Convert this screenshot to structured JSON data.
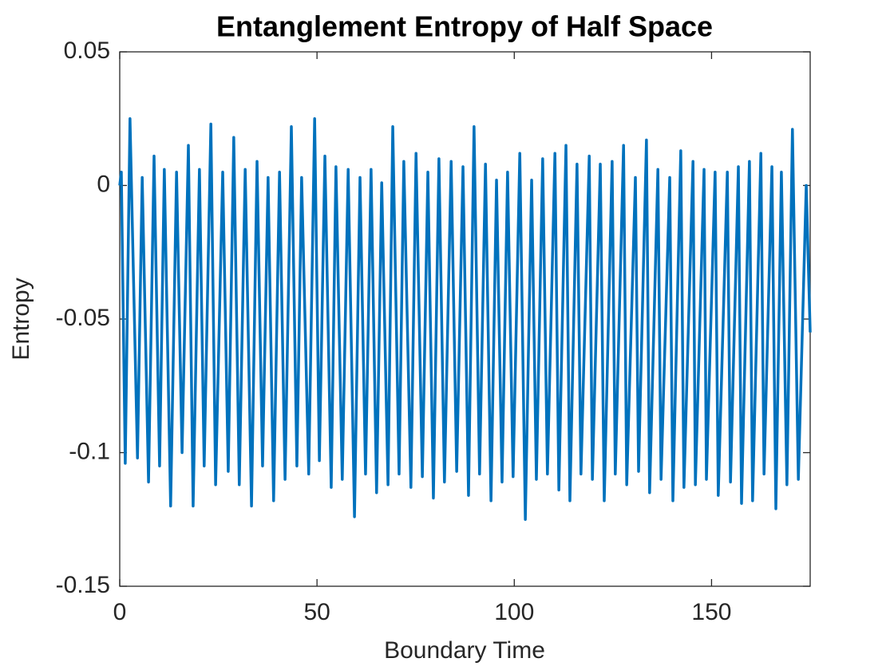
{
  "chart_data": {
    "type": "line",
    "title": "Entanglement Entropy of Half Space",
    "x_label": "Boundary Time",
    "y_label": "Entropy",
    "x": [
      0,
      0.4,
      1.4,
      2.6,
      4.5,
      5.7,
      7.3,
      8.7,
      10.1,
      11.3,
      12.9,
      14.4,
      15.8,
      17.4,
      18.6,
      20.2,
      21.4,
      23.1,
      24.3,
      26.1,
      27.5,
      28.9,
      30.3,
      31.8,
      33.4,
      34.8,
      36.2,
      37.6,
      39.0,
      40.5,
      41.9,
      43.5,
      44.9,
      46.1,
      47.9,
      49.4,
      50.6,
      52.0,
      53.6,
      54.8,
      56.4,
      57.9,
      59.5,
      60.9,
      62.3,
      63.7,
      65.1,
      66.4,
      68.0,
      69.2,
      70.8,
      72.0,
      73.8,
      75.1,
      76.7,
      78.1,
      79.5,
      80.9,
      82.3,
      84.0,
      85.4,
      87.0,
      88.4,
      89.8,
      91.2,
      92.7,
      94.1,
      95.5,
      96.9,
      98.3,
      99.7,
      101.4,
      102.8,
      104.4,
      105.6,
      107.2,
      108.4,
      110.3,
      111.3,
      113.1,
      114.1,
      115.9,
      116.9,
      119.0,
      119.8,
      121.8,
      122.8,
      124.8,
      125.6,
      127.7,
      128.5,
      130.7,
      131.5,
      133.5,
      134.3,
      136.4,
      137.2,
      139.4,
      140.2,
      142.2,
      143.0,
      145.3,
      145.9,
      148.1,
      148.7,
      150.9,
      151.7,
      154.0,
      154.8,
      156.8,
      157.6,
      159.6,
      160.4,
      162.5,
      163.3,
      165.3,
      166.3,
      167.7,
      169.1,
      170.5,
      172.0,
      174.0,
      175.0
    ],
    "series": [
      {
        "color": "#0072bd",
        "values": [
          0,
          0.005,
          -0.104,
          0.025,
          -0.102,
          0.003,
          -0.111,
          0.011,
          -0.105,
          0.006,
          -0.12,
          0.005,
          -0.1,
          0.015,
          -0.12,
          0.006,
          -0.105,
          0.023,
          -0.112,
          0.005,
          -0.107,
          0.018,
          -0.112,
          0.006,
          -0.12,
          0.009,
          -0.105,
          0.003,
          -0.118,
          0.005,
          -0.11,
          0.022,
          -0.105,
          0.003,
          -0.108,
          0.025,
          -0.103,
          0.011,
          -0.113,
          0.007,
          -0.11,
          0.006,
          -0.124,
          0.003,
          -0.108,
          0.006,
          -0.115,
          0.001,
          -0.112,
          0.022,
          -0.108,
          0.009,
          -0.113,
          0.012,
          -0.109,
          0.005,
          -0.117,
          0.01,
          -0.111,
          0.009,
          -0.107,
          0.007,
          -0.116,
          0.022,
          -0.108,
          0.008,
          -0.118,
          0.002,
          -0.111,
          0.005,
          -0.109,
          0.012,
          -0.125,
          0.002,
          -0.11,
          0.01,
          -0.108,
          0.012,
          -0.114,
          0.015,
          -0.118,
          0.008,
          -0.108,
          0.011,
          -0.11,
          0.008,
          -0.118,
          0.009,
          -0.108,
          0.015,
          -0.112,
          0.003,
          -0.107,
          0.017,
          -0.115,
          0.006,
          -0.11,
          0.003,
          -0.118,
          0.013,
          -0.113,
          0.009,
          -0.112,
          0.006,
          -0.11,
          0.005,
          -0.116,
          0.005,
          -0.111,
          0.007,
          -0.119,
          0.009,
          -0.118,
          0.012,
          -0.108,
          0.007,
          -0.121,
          0.005,
          -0.112,
          0.021,
          -0.11,
          0,
          -0.055
        ]
      }
    ],
    "xlim": [
      0,
      175
    ],
    "xticks": [
      0,
      50,
      100,
      150
    ],
    "ylim": [
      -0.15,
      0.05
    ],
    "yticks": [
      -0.15,
      -0.1,
      -0.05,
      0,
      0.05
    ]
  }
}
